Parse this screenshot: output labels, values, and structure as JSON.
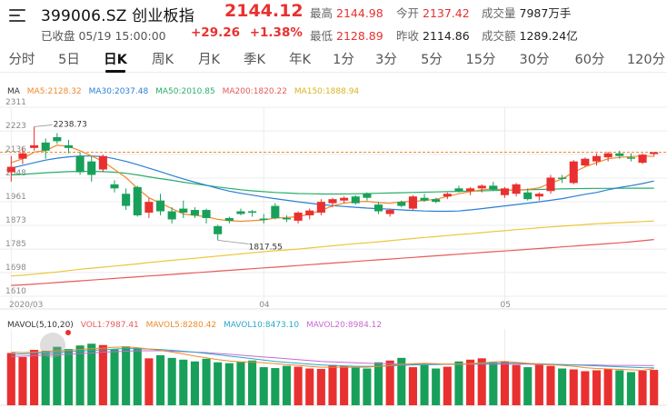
{
  "header": {
    "title": "399006.SZ 创业板指",
    "status": "已收盘 05/19 15:00:00",
    "price": "2144.12",
    "change": "+29.26",
    "change_pct": "+1.38%",
    "stats": [
      {
        "label": "最高",
        "value": "2144.98",
        "color": "up"
      },
      {
        "label": "今开",
        "value": "2137.42",
        "color": "up"
      },
      {
        "label": "成交量",
        "value": "7987万手",
        "color": "neutral"
      },
      {
        "label": "最低",
        "value": "2128.89",
        "color": "up"
      },
      {
        "label": "昨收",
        "value": "2114.86",
        "color": "neutral"
      },
      {
        "label": "成交额",
        "value": "1289.24亿",
        "color": "neutral"
      }
    ]
  },
  "tabs": [
    "分时",
    "5日",
    "日K",
    "周K",
    "月K",
    "季K",
    "年K",
    "1分",
    "3分",
    "5分",
    "15分",
    "30分",
    "60分",
    "120分"
  ],
  "active_tab": 2,
  "ma_legend": {
    "label": "MA",
    "items": [
      {
        "text": "MA5:2128.32",
        "color": "#f0892c"
      },
      {
        "text": "MA30:2037.48",
        "color": "#2a7fd4"
      },
      {
        "text": "MA50:2010.85",
        "color": "#2aae6a"
      },
      {
        "text": "MA200:1820.22",
        "color": "#e85a5a"
      },
      {
        "text": "MA150:1888.94",
        "color": "#ecc73a"
      }
    ]
  },
  "vol_legend": {
    "label": "MAVOL(5,10,20)",
    "items": [
      {
        "text": "VOL1:7987.41",
        "color": "#e85a5a"
      },
      {
        "text": "MAVOL5:8280.42",
        "color": "#f0892c"
      },
      {
        "text": "MAVOL10:8473.10",
        "color": "#2aa8c8"
      },
      {
        "text": "MAVOL20:8984.12",
        "color": "#c86ad0"
      }
    ]
  },
  "colors": {
    "up": "#e93030",
    "down": "#18a05a",
    "grid": "#ececec",
    "ref_line": "#f0892c"
  },
  "chart_data": {
    "type": "candlestick",
    "y_ticks": [
      "2311",
      "2223",
      "2136",
      "2048",
      "1961",
      "1873",
      "1785",
      "1698",
      "1610"
    ],
    "ylim": [
      1610,
      2311
    ],
    "x_labels": [
      {
        "text": "2020/03",
        "index": 0
      },
      {
        "text": "04",
        "index": 22
      },
      {
        "text": "05",
        "index": 43
      }
    ],
    "annotations": [
      {
        "text": "2238.73",
        "index": 2,
        "value": 2238.73
      },
      {
        "text": "1817.55",
        "index": 18,
        "value": 1817.55
      }
    ],
    "reference_line": 2144.12,
    "candles": [
      {
        "o": 2070,
        "h": 2130,
        "l": 2035,
        "c": 2090
      },
      {
        "o": 2120,
        "h": 2160,
        "l": 2100,
        "c": 2140
      },
      {
        "o": 2160,
        "h": 2238.73,
        "l": 2150,
        "c": 2170
      },
      {
        "o": 2180,
        "h": 2195,
        "l": 2120,
        "c": 2150
      },
      {
        "o": 2200,
        "h": 2215,
        "l": 2175,
        "c": 2185
      },
      {
        "o": 2170,
        "h": 2190,
        "l": 2140,
        "c": 2160
      },
      {
        "o": 2130,
        "h": 2145,
        "l": 2060,
        "c": 2070
      },
      {
        "o": 2110,
        "h": 2130,
        "l": 2035,
        "c": 2060
      },
      {
        "o": 2080,
        "h": 2135,
        "l": 2070,
        "c": 2130
      },
      {
        "o": 2025,
        "h": 2040,
        "l": 1995,
        "c": 2010
      },
      {
        "o": 1990,
        "h": 2010,
        "l": 1930,
        "c": 1945
      },
      {
        "o": 2015,
        "h": 2020,
        "l": 1905,
        "c": 1910
      },
      {
        "o": 1920,
        "h": 1975,
        "l": 1900,
        "c": 1960
      },
      {
        "o": 1965,
        "h": 1990,
        "l": 1910,
        "c": 1925
      },
      {
        "o": 1925,
        "h": 1940,
        "l": 1880,
        "c": 1895
      },
      {
        "o": 1935,
        "h": 1965,
        "l": 1900,
        "c": 1920
      },
      {
        "o": 1930,
        "h": 1940,
        "l": 1900,
        "c": 1910
      },
      {
        "o": 1930,
        "h": 1935,
        "l": 1880,
        "c": 1900
      },
      {
        "o": 1870,
        "h": 1875,
        "l": 1817.55,
        "c": 1840
      },
      {
        "o": 1900,
        "h": 1905,
        "l": 1880,
        "c": 1890
      },
      {
        "o": 1925,
        "h": 1935,
        "l": 1910,
        "c": 1915
      },
      {
        "o": 1925,
        "h": 1930,
        "l": 1905,
        "c": 1920
      },
      {
        "o": 1898,
        "h": 1915,
        "l": 1880,
        "c": 1893
      },
      {
        "o": 1945,
        "h": 1955,
        "l": 1895,
        "c": 1900
      },
      {
        "o": 1900,
        "h": 1910,
        "l": 1885,
        "c": 1895
      },
      {
        "o": 1890,
        "h": 1925,
        "l": 1880,
        "c": 1920
      },
      {
        "o": 1910,
        "h": 1935,
        "l": 1895,
        "c": 1928
      },
      {
        "o": 1920,
        "h": 1970,
        "l": 1910,
        "c": 1960
      },
      {
        "o": 1955,
        "h": 1975,
        "l": 1940,
        "c": 1970
      },
      {
        "o": 1965,
        "h": 1980,
        "l": 1955,
        "c": 1975
      },
      {
        "o": 1980,
        "h": 1985,
        "l": 1950,
        "c": 1955
      },
      {
        "o": 1990,
        "h": 1995,
        "l": 1965,
        "c": 1975
      },
      {
        "o": 1950,
        "h": 1960,
        "l": 1915,
        "c": 1925
      },
      {
        "o": 1915,
        "h": 1935,
        "l": 1905,
        "c": 1930
      },
      {
        "o": 1960,
        "h": 1965,
        "l": 1940,
        "c": 1945
      },
      {
        "o": 1935,
        "h": 1985,
        "l": 1930,
        "c": 1980
      },
      {
        "o": 1975,
        "h": 1990,
        "l": 1960,
        "c": 1965
      },
      {
        "o": 1970,
        "h": 1975,
        "l": 1955,
        "c": 1960
      },
      {
        "o": 1980,
        "h": 1995,
        "l": 1970,
        "c": 1990
      },
      {
        "o": 2010,
        "h": 2020,
        "l": 1995,
        "c": 2000
      },
      {
        "o": 2000,
        "h": 2015,
        "l": 1985,
        "c": 2010
      },
      {
        "o": 2010,
        "h": 2025,
        "l": 1995,
        "c": 2020
      },
      {
        "o": 2020,
        "h": 2035,
        "l": 2000,
        "c": 2005
      },
      {
        "o": 1985,
        "h": 2015,
        "l": 1975,
        "c": 2010
      },
      {
        "o": 1990,
        "h": 2030,
        "l": 1980,
        "c": 2025
      },
      {
        "o": 1995,
        "h": 2010,
        "l": 1965,
        "c": 1970
      },
      {
        "o": 1980,
        "h": 1995,
        "l": 1965,
        "c": 1990
      },
      {
        "o": 2000,
        "h": 2060,
        "l": 1990,
        "c": 2050
      },
      {
        "o": 2050,
        "h": 2060,
        "l": 2030,
        "c": 2045
      },
      {
        "o": 2030,
        "h": 2115,
        "l": 2025,
        "c": 2110
      },
      {
        "o": 2095,
        "h": 2125,
        "l": 2090,
        "c": 2120
      },
      {
        "o": 2110,
        "h": 2140,
        "l": 2095,
        "c": 2130
      },
      {
        "o": 2125,
        "h": 2145,
        "l": 2110,
        "c": 2140
      },
      {
        "o": 2140,
        "h": 2150,
        "l": 2120,
        "c": 2130
      },
      {
        "o": 2125,
        "h": 2140,
        "l": 2110,
        "c": 2120
      },
      {
        "o": 2105,
        "h": 2140,
        "l": 2100,
        "c": 2135
      },
      {
        "o": 2137.42,
        "h": 2144.98,
        "l": 2128.89,
        "c": 2144.12
      }
    ],
    "ma5": [
      2105,
      2120,
      2145,
      2150,
      2170,
      2165,
      2150,
      2130,
      2110,
      2080,
      2050,
      2010,
      1975,
      1955,
      1935,
      1915,
      1910,
      1905,
      1895,
      1890,
      1888,
      1890,
      1893,
      1900,
      1902,
      1905,
      1915,
      1928,
      1945,
      1955,
      1960,
      1962,
      1957,
      1955,
      1960,
      1962,
      1965,
      1970,
      1980,
      1990,
      1998,
      2005,
      2008,
      2005,
      2003,
      2006,
      2012,
      2030,
      2045,
      2070,
      2090,
      2105,
      2120,
      2125,
      2128,
      2130,
      2128.32
    ],
    "ma30": [
      2085,
      2095,
      2105,
      2115,
      2122,
      2127,
      2130,
      2130,
      2128,
      2120,
      2110,
      2098,
      2085,
      2072,
      2058,
      2045,
      2033,
      2022,
      2010,
      2000,
      1992,
      1985,
      1978,
      1972,
      1966,
      1960,
      1955,
      1950,
      1946,
      1943,
      1940,
      1937,
      1935,
      1933,
      1930,
      1928,
      1926,
      1925,
      1925,
      1926,
      1930,
      1935,
      1940,
      1945,
      1950,
      1955,
      1960,
      1966,
      1972,
      1980,
      1988,
      1995,
      2005,
      2013,
      2020,
      2028,
      2037.48
    ],
    "ma50": [
      2060,
      2062,
      2065,
      2068,
      2070,
      2072,
      2073,
      2073,
      2072,
      2070,
      2066,
      2060,
      2053,
      2046,
      2040,
      2033,
      2027,
      2021,
      2015,
      2010,
      2005,
      2001,
      1998,
      1995,
      1993,
      1991,
      1990,
      1989,
      1989,
      1989,
      1990,
      1991,
      1992,
      1993,
      1994,
      1995,
      1996,
      1997,
      1998,
      1999,
      2000,
      2001,
      2002,
      2003,
      2004,
      2005,
      2006,
      2007,
      2008,
      2009,
      2009.5,
      2010,
      2010.2,
      2010.4,
      2010.6,
      2010.8,
      2010.85
    ],
    "ma150": [
      1685,
      1688,
      1692,
      1696,
      1700,
      1705,
      1710,
      1714,
      1718,
      1722,
      1726,
      1730,
      1735,
      1739,
      1743,
      1747,
      1751,
      1755,
      1759,
      1763,
      1767,
      1771,
      1775,
      1779,
      1782,
      1785,
      1789,
      1793,
      1797,
      1801,
      1805,
      1808,
      1812,
      1816,
      1820,
      1824,
      1828,
      1831,
      1835,
      1839,
      1842,
      1846,
      1850,
      1853,
      1857,
      1860,
      1864,
      1867,
      1870,
      1873,
      1876,
      1879,
      1881,
      1883,
      1885,
      1887,
      1888.94
    ],
    "ma200": [
      1650,
      1652,
      1655,
      1658,
      1661,
      1664,
      1667,
      1670,
      1673,
      1676,
      1679,
      1682,
      1685,
      1688,
      1691,
      1694,
      1697,
      1700,
      1703,
      1706,
      1709,
      1712,
      1715,
      1718,
      1721,
      1724,
      1727,
      1730,
      1733,
      1736,
      1739,
      1742,
      1745,
      1748,
      1751,
      1754,
      1757,
      1760,
      1763,
      1766,
      1769,
      1772,
      1775,
      1778,
      1781,
      1784,
      1787,
      1790,
      1793,
      1796,
      1799,
      1802,
      1805,
      1808,
      1812,
      1816,
      1820.22
    ],
    "volume": {
      "ylim": [
        0,
        16000
      ],
      "values": [
        11800,
        10900,
        12500,
        12300,
        13200,
        12700,
        13500,
        13900,
        13600,
        12600,
        13300,
        12900,
        10600,
        11300,
        10700,
        10300,
        9900,
        10500,
        9700,
        9500,
        9800,
        10100,
        8600,
        8400,
        8900,
        8700,
        8300,
        8200,
        9100,
        8800,
        8500,
        8300,
        9700,
        10100,
        10700,
        8600,
        9100,
        8300,
        8700,
        9900,
        10300,
        10600,
        9700,
        9900,
        9100,
        8600,
        9300,
        8900,
        8300,
        8100,
        7700,
        7900,
        8200,
        7900,
        7500,
        7800,
        7987.41
      ],
      "mavol5": [
        12000,
        11900,
        12000,
        12100,
        12300,
        12400,
        12600,
        12800,
        12900,
        13100,
        13200,
        13000,
        12700,
        12400,
        12000,
        11600,
        11100,
        10700,
        10300,
        10000,
        9800,
        9800,
        9600,
        9400,
        9200,
        9000,
        8800,
        8600,
        8600,
        8600,
        8600,
        8600,
        8800,
        9000,
        9300,
        9400,
        9500,
        9400,
        9300,
        9300,
        9400,
        9600,
        9800,
        9900,
        9700,
        9500,
        9300,
        9200,
        9000,
        8800,
        8500,
        8300,
        8200,
        8100,
        8000,
        7900,
        8280.42
      ],
      "mavol10": [
        11500,
        11600,
        11700,
        11800,
        11900,
        12100,
        12200,
        12400,
        12500,
        12700,
        12800,
        12800,
        12700,
        12600,
        12400,
        12200,
        12000,
        11700,
        11400,
        11100,
        10800,
        10500,
        10200,
        9900,
        9700,
        9500,
        9300,
        9100,
        9000,
        8900,
        8800,
        8800,
        8800,
        8900,
        9000,
        9100,
        9200,
        9200,
        9300,
        9300,
        9400,
        9400,
        9500,
        9500,
        9500,
        9400,
        9400,
        9300,
        9200,
        9100,
        9000,
        8900,
        8800,
        8700,
        8600,
        8500,
        8473.1
      ],
      "mavol20": [
        11000,
        11100,
        11200,
        11300,
        11400,
        11500,
        11700,
        11800,
        12000,
        12100,
        12200,
        12300,
        12300,
        12300,
        12200,
        12100,
        12000,
        11900,
        11700,
        11500,
        11300,
        11100,
        10900,
        10700,
        10500,
        10300,
        10100,
        9900,
        9800,
        9700,
        9600,
        9500,
        9400,
        9400,
        9300,
        9300,
        9300,
        9300,
        9300,
        9300,
        9300,
        9300,
        9300,
        9300,
        9300,
        9300,
        9200,
        9200,
        9200,
        9100,
        9100,
        9100,
        9000,
        9000,
        9000,
        8990,
        8984.12
      ]
    }
  }
}
